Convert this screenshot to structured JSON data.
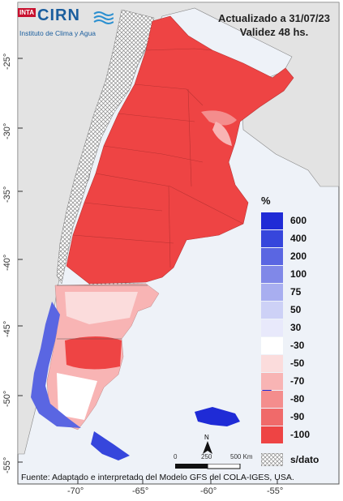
{
  "header": {
    "updated": "Actualizado a 31/07/23",
    "validity": "Validez 48 hs."
  },
  "logo": {
    "inta": "INTA",
    "cirn": "CIRN",
    "institute": "Instituto de Clima y Agua"
  },
  "axes": {
    "lat_ticks": [
      "-25°",
      "-30°",
      "-35°",
      "-40°",
      "-45°",
      "-50°",
      "-55°"
    ],
    "lon_ticks": [
      "-70°",
      "-65°",
      "-60°",
      "-55°"
    ]
  },
  "legend": {
    "title": "%",
    "items": [
      {
        "label": "600",
        "color": "#1f2bd6"
      },
      {
        "label": "400",
        "color": "#3646dc"
      },
      {
        "label": "200",
        "color": "#5a66e2"
      },
      {
        "label": "100",
        "color": "#8088e8"
      },
      {
        "label": "75",
        "color": "#a8aef0"
      },
      {
        "label": "50",
        "color": "#cdd1f6"
      },
      {
        "label": "30",
        "color": "#e8e9fb"
      },
      {
        "label": "-30",
        "color": "#ffffff"
      },
      {
        "label": "-50",
        "color": "#fbdcdc"
      },
      {
        "label": "-70",
        "color": "#f8b4b4"
      },
      {
        "label": "-80",
        "color": "#f48d8d"
      },
      {
        "label": "-90",
        "color": "#f06a6a"
      },
      {
        "label": "-100",
        "color": "#ee4444"
      }
    ],
    "nodata": "s/dato"
  },
  "scalebar": {
    "north": "N",
    "labels": [
      "0",
      "250",
      "500 Km"
    ]
  },
  "footer": "Fuente: Adaptado e interpretado del Modelo GFS del COLA-IGES, USA."
}
